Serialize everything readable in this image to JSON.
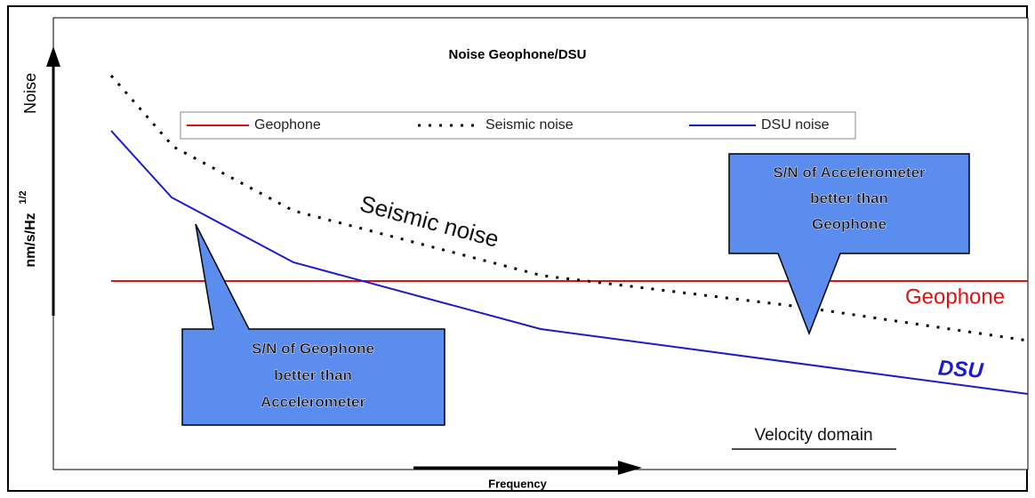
{
  "title": "Noise Geophone/DSU",
  "legend": {
    "items": [
      "Geophone",
      "Seismic noise",
      "DSU noise"
    ]
  },
  "y_axis": {
    "label": "Noise",
    "unit": "nm/s/Hz",
    "unit_exponent": "1/2"
  },
  "x_axis": {
    "label": "Frequency"
  },
  "curve_labels": {
    "seismic": "Seismic noise",
    "geophone": "Geophone",
    "dsu": "DSU"
  },
  "callouts": {
    "accelerometer_better": [
      "S/N of Accelerometer",
      "better than",
      "Geophone"
    ],
    "geophone_better": [
      "S/N of Geophone",
      "better than",
      "Accelerometer"
    ]
  },
  "domain_note": "Velocity domain"
}
